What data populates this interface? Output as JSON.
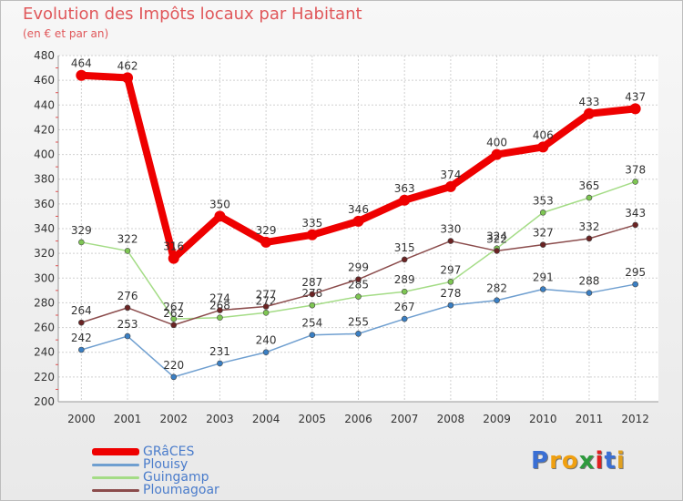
{
  "chart_data": {
    "type": "line",
    "title": "Evolution des Impôts locaux par Habitant",
    "subtitle": "(en € et par an)",
    "x": [
      "2000",
      "2001",
      "2002",
      "2003",
      "2004",
      "2005",
      "2006",
      "2007",
      "2008",
      "2009",
      "2010",
      "2011",
      "2012"
    ],
    "ylim": [
      200,
      480
    ],
    "yticks": [
      200,
      220,
      240,
      260,
      280,
      300,
      320,
      340,
      360,
      380,
      400,
      420,
      440,
      460,
      480
    ],
    "grid": true,
    "legend_position": "bottom-left",
    "series": [
      {
        "name": "Plouisy",
        "color": "#6f9fd0",
        "marker": "#3a7fc4",
        "width": 1.5,
        "radius": 3,
        "values": [
          242,
          253,
          220,
          231,
          240,
          254,
          255,
          267,
          278,
          282,
          291,
          288,
          295
        ]
      },
      {
        "name": "Guingamp",
        "color": "#a4dc86",
        "marker": "#7ec653",
        "width": 1.5,
        "radius": 3,
        "values": [
          329,
          322,
          267,
          268,
          272,
          278,
          285,
          289,
          297,
          324,
          353,
          365,
          378
        ]
      },
      {
        "name": "Ploumagoar",
        "color": "#8b4c4c",
        "marker": "#6b2323",
        "width": 1.5,
        "radius": 3,
        "values": [
          264,
          276,
          262,
          274,
          277,
          287,
          299,
          315,
          330,
          322,
          327,
          332,
          343
        ]
      },
      {
        "name": "GRâCES",
        "color": "#ee0000",
        "marker": "#ee0000",
        "width": 8,
        "radius": 6,
        "values": [
          464,
          462,
          316,
          350,
          329,
          335,
          346,
          363,
          374,
          400,
          406,
          433,
          437
        ]
      }
    ],
    "legend_order": [
      "GRâCES",
      "Plouisy",
      "Guingamp",
      "Ploumagoar"
    ],
    "brand": {
      "letters": [
        "P",
        "r",
        "o",
        "x",
        "i",
        "t",
        "i"
      ],
      "colors": [
        "#3a6fd4",
        "#f0a010",
        "#f0a010",
        "#2e9a3e",
        "#e02020",
        "#3a6fd4",
        "#e0a020"
      ]
    }
  }
}
